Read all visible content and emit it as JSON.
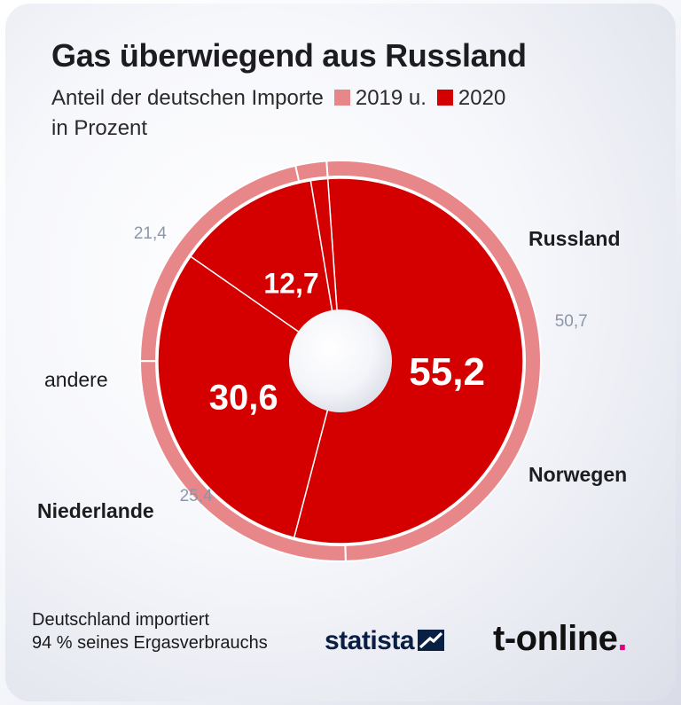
{
  "header": {
    "title": "Gas überwiegend aus Russland",
    "subtitle_text": "Anteil der deutschen Importe",
    "legend_2019": "2019 u.",
    "legend_2020": "2020",
    "subtitle_line2": "in Prozent"
  },
  "colors": {
    "series_2019": "#e8878a",
    "series_2020": "#d40000",
    "label_2019": "#8d95a8"
  },
  "chart_data": {
    "type": "pie",
    "subtype": "nested-donut",
    "categories": [
      "Russland",
      "Norwegen",
      "Niederlande",
      "andere"
    ],
    "series": [
      {
        "name": "2020",
        "values": [
          55.2,
          30.6,
          12.7,
          1.5
        ]
      },
      {
        "name": "2019",
        "values": [
          50.7,
          25.4,
          21.4,
          2.5
        ]
      }
    ],
    "value_labels_2020": [
      "55,2",
      "30,6",
      "12,7",
      ""
    ],
    "value_labels_2019": [
      "50,7",
      "25,4",
      "21,4",
      ""
    ]
  },
  "footer": {
    "note_line1": "Deutschland importiert",
    "note_line2": "94 % seines Ergasverbrauchs",
    "source_brand": "statista",
    "publisher_brand": "t-online",
    "publisher_dot": "."
  }
}
